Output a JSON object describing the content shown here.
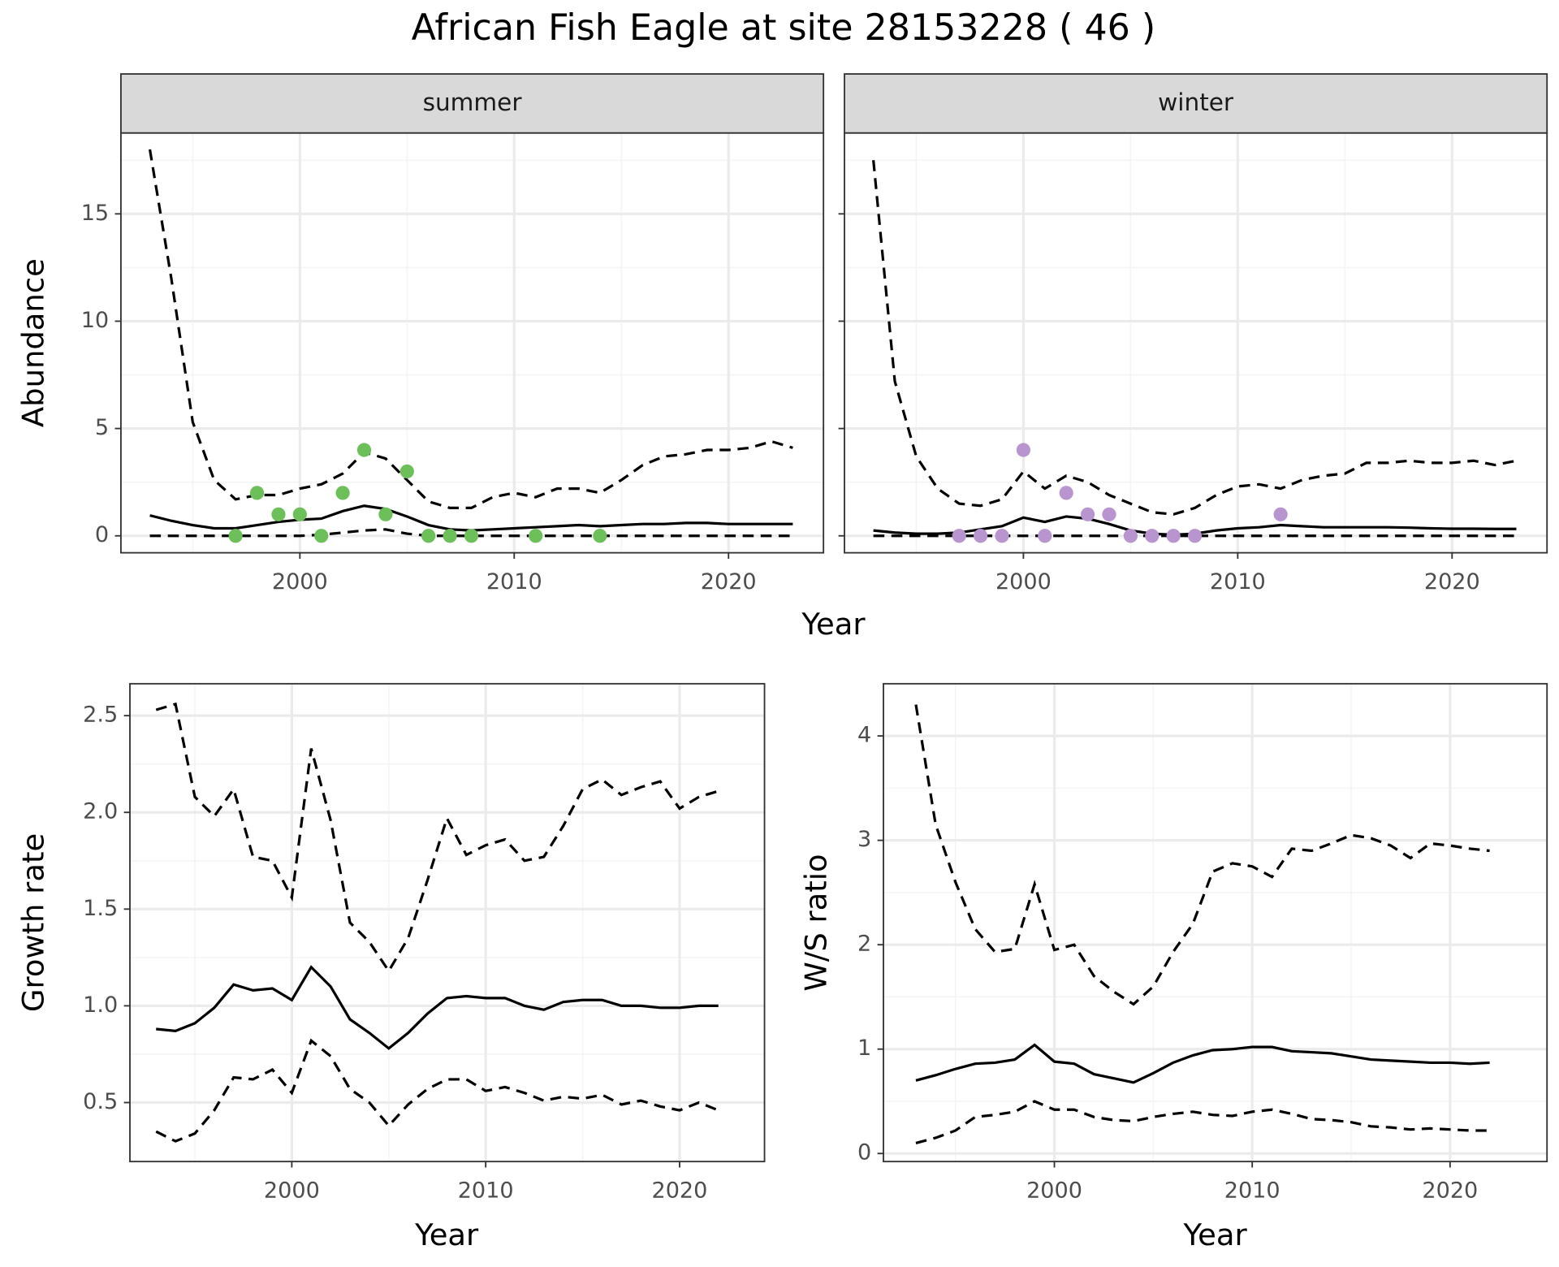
{
  "title": "African Fish Eagle at site 28153228 ( 46 )",
  "chart_data": [
    {
      "type": "line",
      "strip": "summer",
      "ylabel": "Abundance",
      "xlabel": "Year",
      "x": [
        1993,
        1994,
        1995,
        1996,
        1997,
        1998,
        1999,
        2000,
        2001,
        2002,
        2003,
        2004,
        2005,
        2006,
        2007,
        2008,
        2009,
        2010,
        2011,
        2012,
        2013,
        2014,
        2015,
        2016,
        2017,
        2018,
        2019,
        2020,
        2021,
        2022,
        2023
      ],
      "series": [
        {
          "color": "#000000",
          "linestyle": "dashed",
          "values": [
            18,
            12,
            5.3,
            2.6,
            1.7,
            1.9,
            1.9,
            2.2,
            2.4,
            2.9,
            3.9,
            3.6,
            2.6,
            1.6,
            1.3,
            1.3,
            1.8,
            2.0,
            1.8,
            2.2,
            2.2,
            2.0,
            2.6,
            3.3,
            3.7,
            3.8,
            4.0,
            4.0,
            4.1,
            4.4,
            4.1
          ]
        },
        {
          "color": "#000000",
          "linestyle": "solid",
          "values": [
            0.95,
            0.7,
            0.5,
            0.35,
            0.35,
            0.5,
            0.65,
            0.75,
            0.8,
            1.15,
            1.4,
            1.25,
            0.9,
            0.5,
            0.3,
            0.25,
            0.3,
            0.35,
            0.4,
            0.45,
            0.5,
            0.45,
            0.5,
            0.55,
            0.55,
            0.6,
            0.6,
            0.55,
            0.55,
            0.55,
            0.55
          ]
        },
        {
          "color": "#000000",
          "linestyle": "dashed",
          "values": [
            0,
            0,
            0,
            0,
            0,
            0,
            0,
            0,
            0.05,
            0.15,
            0.25,
            0.3,
            0.1,
            0,
            0,
            0,
            0,
            0,
            0,
            0,
            0,
            0,
            0,
            0,
            0,
            0,
            0,
            0,
            0,
            0,
            0
          ]
        }
      ],
      "points": {
        "color": "#6dbf5a",
        "x": [
          1997,
          1998,
          1999,
          2000,
          2001,
          2002,
          2003,
          2004,
          2005,
          2006,
          2007,
          2008,
          2011,
          2014
        ],
        "values": [
          0,
          2,
          1,
          1,
          0,
          2,
          4,
          1,
          3,
          0,
          0,
          0,
          0,
          0
        ]
      },
      "xlim": [
        1991.65,
        2024.43
      ],
      "xticks": [
        2000,
        2010,
        2020
      ],
      "minor_xticks": [
        1995,
        2005,
        2015
      ],
      "ylim": [
        -0.79,
        18.77
      ],
      "yticks": [
        0,
        5,
        10,
        15
      ],
      "minor_yticks": [
        2.5,
        7.5,
        12.5,
        17.5
      ],
      "ytick_labels": true,
      "grid": true
    },
    {
      "type": "line",
      "strip": "winter",
      "x": [
        1993,
        1994,
        1995,
        1996,
        1997,
        1998,
        1999,
        2000,
        2001,
        2002,
        2003,
        2004,
        2005,
        2006,
        2007,
        2008,
        2009,
        2010,
        2011,
        2012,
        2013,
        2014,
        2015,
        2016,
        2017,
        2018,
        2019,
        2020,
        2021,
        2022,
        2023
      ],
      "series": [
        {
          "color": "#000000",
          "linestyle": "dashed",
          "values": [
            17.5,
            7.2,
            3.7,
            2.2,
            1.5,
            1.4,
            1.7,
            3.0,
            2.2,
            2.8,
            2.5,
            1.9,
            1.5,
            1.1,
            1.0,
            1.3,
            1.9,
            2.3,
            2.4,
            2.2,
            2.6,
            2.8,
            2.9,
            3.4,
            3.4,
            3.5,
            3.4,
            3.4,
            3.5,
            3.3,
            3.5
          ]
        },
        {
          "color": "#000000",
          "linestyle": "solid",
          "values": [
            0.25,
            0.15,
            0.1,
            0.1,
            0.15,
            0.3,
            0.45,
            0.85,
            0.65,
            0.9,
            0.8,
            0.55,
            0.25,
            0.1,
            0.05,
            0.1,
            0.25,
            0.35,
            0.4,
            0.5,
            0.45,
            0.4,
            0.4,
            0.4,
            0.4,
            0.38,
            0.35,
            0.33,
            0.33,
            0.32,
            0.32
          ]
        },
        {
          "color": "#000000",
          "linestyle": "dashed",
          "values": [
            0,
            0,
            0,
            0,
            0,
            0,
            0,
            0,
            0,
            0,
            0,
            0,
            0,
            0,
            0,
            0,
            0,
            0,
            0,
            0,
            0,
            0,
            0,
            0,
            0,
            0,
            0,
            0,
            0,
            0,
            0
          ]
        }
      ],
      "points": {
        "color": "#b995cf",
        "x": [
          1997,
          1998,
          1999,
          2000,
          2001,
          2002,
          2003,
          2004,
          2005,
          2006,
          2007,
          2008,
          2012
        ],
        "values": [
          0,
          0,
          0,
          4,
          0,
          2,
          1,
          1,
          0,
          0,
          0,
          0,
          1
        ]
      },
      "xlim": [
        1991.65,
        2024.43
      ],
      "xticks": [
        2000,
        2010,
        2020
      ],
      "minor_xticks": [
        1995,
        2005,
        2015
      ],
      "ylim": [
        -0.79,
        18.77
      ],
      "yticks": [
        0,
        5,
        10,
        15
      ],
      "minor_yticks": [
        2.5,
        7.5,
        12.5,
        17.5
      ],
      "ytick_labels": false,
      "grid": true
    },
    {
      "type": "line",
      "ylabel": "Growth rate",
      "xlabel": "Year",
      "x": [
        1993,
        1994,
        1995,
        1996,
        1997,
        1998,
        1999,
        2000,
        2001,
        2002,
        2003,
        2004,
        2005,
        2006,
        2007,
        2008,
        2009,
        2010,
        2011,
        2012,
        2013,
        2014,
        2015,
        2016,
        2017,
        2018,
        2019,
        2020,
        2021,
        2022
      ],
      "series": [
        {
          "color": "#000000",
          "linestyle": "dashed",
          "values": [
            2.53,
            2.56,
            2.08,
            1.98,
            2.12,
            1.77,
            1.75,
            1.56,
            2.33,
            1.96,
            1.43,
            1.33,
            1.18,
            1.35,
            1.65,
            1.97,
            1.78,
            1.83,
            1.86,
            1.75,
            1.77,
            1.93,
            2.12,
            2.17,
            2.09,
            2.13,
            2.16,
            2.02,
            2.08,
            2.11
          ]
        },
        {
          "color": "#000000",
          "linestyle": "solid",
          "values": [
            0.88,
            0.87,
            0.91,
            0.99,
            1.11,
            1.08,
            1.09,
            1.03,
            1.2,
            1.1,
            0.93,
            0.86,
            0.78,
            0.86,
            0.96,
            1.04,
            1.05,
            1.04,
            1.04,
            1.0,
            0.98,
            1.02,
            1.03,
            1.03,
            1.0,
            1.0,
            0.99,
            0.99,
            1.0,
            1.0
          ]
        },
        {
          "color": "#000000",
          "linestyle": "dashed",
          "values": [
            0.35,
            0.3,
            0.34,
            0.46,
            0.63,
            0.62,
            0.67,
            0.55,
            0.82,
            0.74,
            0.57,
            0.5,
            0.38,
            0.49,
            0.57,
            0.62,
            0.62,
            0.56,
            0.58,
            0.55,
            0.51,
            0.53,
            0.52,
            0.54,
            0.49,
            0.51,
            0.48,
            0.46,
            0.5,
            0.46
          ]
        }
      ],
      "xlim": [
        1991.65,
        2024.38
      ],
      "xticks": [
        2000,
        2010,
        2020
      ],
      "minor_xticks": [
        1995,
        2005,
        2015
      ],
      "ylim": [
        0.195,
        2.665
      ],
      "yticks": [
        {
          "value": 0.5,
          "label": "0.5"
        },
        {
          "value": 1,
          "label": "1.0"
        },
        {
          "value": 1.5,
          "label": "1.5"
        },
        {
          "value": 2,
          "label": "2.0"
        },
        {
          "value": 2.5,
          "label": "2.5"
        }
      ],
      "minor_yticks": [
        0.75,
        1.25,
        1.75,
        2.25
      ],
      "ytick_labels": true,
      "grid": true
    },
    {
      "type": "line",
      "ylabel": "W/S ratio",
      "xlabel": "Year",
      "x": [
        1993,
        1994,
        1995,
        1996,
        1997,
        1998,
        1999,
        2000,
        2001,
        2002,
        2003,
        2004,
        2005,
        2006,
        2007,
        2008,
        2009,
        2010,
        2011,
        2012,
        2013,
        2014,
        2015,
        2016,
        2017,
        2018,
        2019,
        2020,
        2021,
        2022
      ],
      "series": [
        {
          "color": "#000000",
          "linestyle": "dashed",
          "values": [
            4.3,
            3.15,
            2.6,
            2.15,
            1.93,
            1.96,
            2.58,
            1.95,
            2.0,
            1.7,
            1.55,
            1.43,
            1.6,
            1.93,
            2.2,
            2.7,
            2.78,
            2.75,
            2.65,
            2.92,
            2.9,
            2.97,
            3.05,
            3.02,
            2.95,
            2.83,
            2.97,
            2.95,
            2.92,
            2.9
          ]
        },
        {
          "color": "#000000",
          "linestyle": "solid",
          "values": [
            0.7,
            0.75,
            0.81,
            0.86,
            0.87,
            0.9,
            1.04,
            0.88,
            0.86,
            0.76,
            0.72,
            0.68,
            0.77,
            0.87,
            0.94,
            0.99,
            1.0,
            1.02,
            1.02,
            0.98,
            0.97,
            0.96,
            0.93,
            0.9,
            0.89,
            0.88,
            0.87,
            0.87,
            0.86,
            0.87
          ]
        },
        {
          "color": "#000000",
          "linestyle": "dashed",
          "values": [
            0.1,
            0.15,
            0.22,
            0.35,
            0.37,
            0.4,
            0.5,
            0.42,
            0.42,
            0.35,
            0.32,
            0.31,
            0.35,
            0.38,
            0.4,
            0.37,
            0.36,
            0.4,
            0.42,
            0.38,
            0.33,
            0.32,
            0.3,
            0.26,
            0.25,
            0.23,
            0.24,
            0.23,
            0.22,
            0.22
          ]
        }
      ],
      "xlim": [
        1991.36,
        2024.9
      ],
      "xticks": [
        2000,
        2010,
        2020
      ],
      "minor_xticks": [
        1995,
        2005,
        2015
      ],
      "ylim": [
        -0.077,
        4.5
      ],
      "yticks": [
        0,
        1,
        2,
        3,
        4
      ],
      "minor_yticks": [
        0.5,
        1.5,
        2.5,
        3.5
      ],
      "ytick_labels": true,
      "grid": true
    }
  ]
}
